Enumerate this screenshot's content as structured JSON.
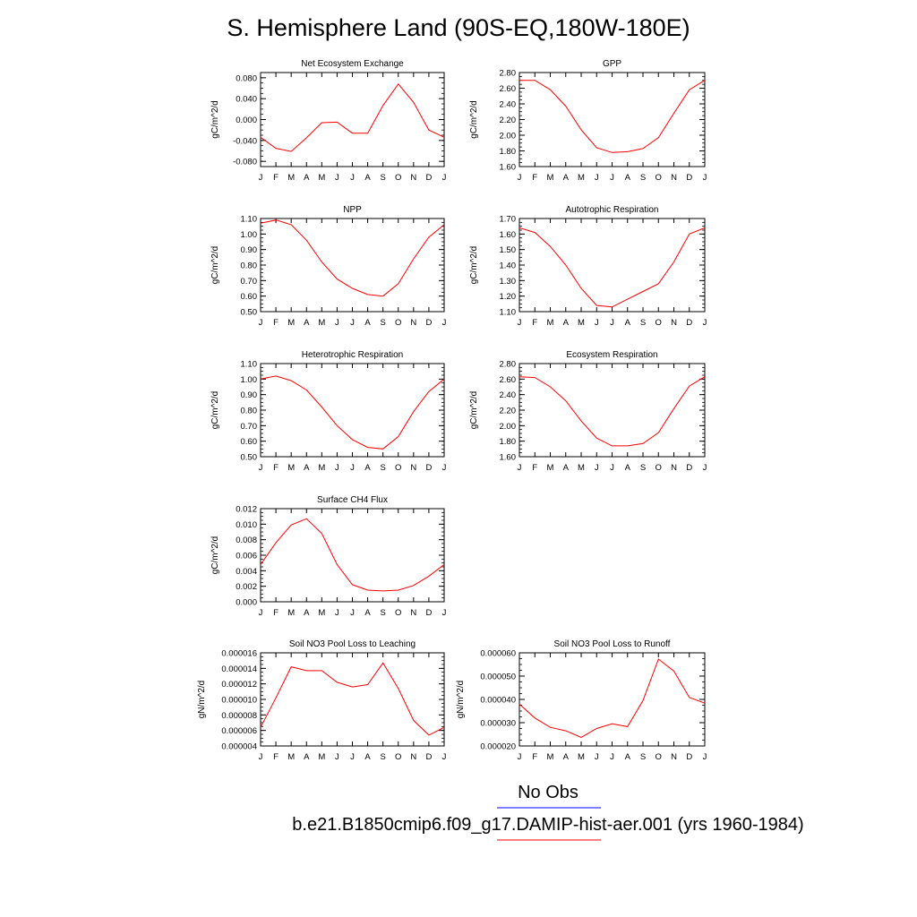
{
  "page_title": "S. Hemisphere Land (90S-EQ,180W-180E)",
  "months": [
    "J",
    "F",
    "M",
    "A",
    "M",
    "J",
    "J",
    "A",
    "S",
    "O",
    "N",
    "D",
    "J"
  ],
  "colors": {
    "model": "#ff0000",
    "obs": "#0000ff"
  },
  "legend": {
    "obs_label": "No Obs",
    "model_label": "b.e21.B1850cmip6.f09_g17.DAMIP-hist-aer.001 (yrs 1960-1984)"
  },
  "chart_data": [
    {
      "type": "line",
      "title": "Net Ecosystem Exchange",
      "ylabel": "gC/m^2/d",
      "ylim": [
        -0.09,
        0.09
      ],
      "yticks": [
        -0.08,
        -0.04,
        0.0,
        0.04,
        0.08
      ],
      "yticklabels": [
        "-0.080",
        "-0.040",
        "0.000",
        "0.040",
        "0.080"
      ],
      "values": [
        -0.034,
        -0.055,
        -0.061,
        -0.035,
        -0.006,
        -0.005,
        -0.026,
        -0.026,
        0.027,
        0.068,
        0.033,
        -0.02,
        -0.034
      ]
    },
    {
      "type": "line",
      "title": "GPP",
      "ylabel": "gC/m^2/d",
      "ylim": [
        1.6,
        2.8
      ],
      "yticks": [
        1.6,
        1.8,
        2.0,
        2.2,
        2.4,
        2.6,
        2.8
      ],
      "yticklabels": [
        "1.60",
        "1.80",
        "2.00",
        "2.20",
        "2.40",
        "2.60",
        "2.80"
      ],
      "values": [
        2.7,
        2.7,
        2.58,
        2.37,
        2.07,
        1.84,
        1.78,
        1.79,
        1.83,
        1.97,
        2.28,
        2.58,
        2.7
      ]
    },
    {
      "type": "line",
      "title": "NPP",
      "ylabel": "gC/m^2/d",
      "ylim": [
        0.5,
        1.1
      ],
      "yticks": [
        0.5,
        0.6,
        0.7,
        0.8,
        0.9,
        1.0,
        1.1
      ],
      "yticklabels": [
        "0.50",
        "0.60",
        "0.70",
        "0.80",
        "0.90",
        "1.00",
        "1.10"
      ],
      "values": [
        1.07,
        1.09,
        1.06,
        0.96,
        0.82,
        0.71,
        0.65,
        0.61,
        0.6,
        0.68,
        0.84,
        0.98,
        1.06
      ]
    },
    {
      "type": "line",
      "title": "Autotrophic Respiration",
      "ylabel": "gC/m^2/d",
      "ylim": [
        1.1,
        1.7
      ],
      "yticks": [
        1.1,
        1.2,
        1.3,
        1.4,
        1.5,
        1.6,
        1.7
      ],
      "yticklabels": [
        "1.10",
        "1.20",
        "1.30",
        "1.40",
        "1.50",
        "1.60",
        "1.70"
      ],
      "values": [
        1.64,
        1.61,
        1.52,
        1.4,
        1.25,
        1.14,
        1.13,
        1.18,
        1.23,
        1.28,
        1.42,
        1.6,
        1.64
      ]
    },
    {
      "type": "line",
      "title": "Heterotrophic Respiration",
      "ylabel": "gC/m^2/d",
      "ylim": [
        0.5,
        1.1
      ],
      "yticks": [
        0.5,
        0.6,
        0.7,
        0.8,
        0.9,
        1.0,
        1.1
      ],
      "yticklabels": [
        "0.50",
        "0.60",
        "0.70",
        "0.80",
        "0.90",
        "1.00",
        "1.10"
      ],
      "values": [
        1.0,
        1.02,
        0.99,
        0.93,
        0.82,
        0.7,
        0.61,
        0.56,
        0.55,
        0.63,
        0.79,
        0.92,
        1.0
      ]
    },
    {
      "type": "line",
      "title": "Ecosystem Respiration",
      "ylabel": "gC/m^2/d",
      "ylim": [
        1.6,
        2.8
      ],
      "yticks": [
        1.6,
        1.8,
        2.0,
        2.2,
        2.4,
        2.6,
        2.8
      ],
      "yticklabels": [
        "1.60",
        "1.80",
        "2.00",
        "2.20",
        "2.40",
        "2.60",
        "2.80"
      ],
      "values": [
        2.63,
        2.62,
        2.5,
        2.32,
        2.06,
        1.84,
        1.74,
        1.74,
        1.77,
        1.91,
        2.22,
        2.51,
        2.63
      ]
    },
    {
      "type": "line",
      "title": "Surface CH4 Flux",
      "ylabel": "gC/m^2/d",
      "ylim": [
        0.0,
        0.012
      ],
      "yticks": [
        0.0,
        0.002,
        0.004,
        0.006,
        0.008,
        0.01,
        0.012
      ],
      "yticklabels": [
        "0.000",
        "0.002",
        "0.004",
        "0.006",
        "0.008",
        "0.010",
        "0.012"
      ],
      "values": [
        0.0048,
        0.0076,
        0.0099,
        0.0107,
        0.0088,
        0.0048,
        0.0022,
        0.0015,
        0.0014,
        0.0015,
        0.0021,
        0.0033,
        0.0048
      ]
    },
    {
      "type": "line",
      "title": "Soil NO3 Pool Loss to Leaching",
      "ylabel": "gN/m^2/d",
      "ylim": [
        4e-06,
        1.6e-05
      ],
      "yticks": [
        4e-06,
        6e-06,
        8e-06,
        1e-05,
        1.2e-05,
        1.4e-05,
        1.6e-05
      ],
      "yticklabels": [
        "0.000004",
        "0.000006",
        "0.000008",
        "0.000010",
        "0.000012",
        "0.000014",
        "0.000016"
      ],
      "values": [
        6.4e-06,
        1.02e-05,
        1.42e-05,
        1.37e-05,
        1.37e-05,
        1.22e-05,
        1.16e-05,
        1.19e-05,
        1.47e-05,
        1.14e-05,
        7.3e-06,
        5.4e-06,
        6.4e-06
      ]
    },
    {
      "type": "line",
      "title": "Soil NO3 Pool Loss to Runoff",
      "ylabel": "gN/m^2/d",
      "ylim": [
        2e-05,
        6e-05
      ],
      "yticks": [
        2e-05,
        3e-05,
        4e-05,
        5e-05,
        6e-05
      ],
      "yticklabels": [
        "0.000020",
        "0.000030",
        "0.000040",
        "0.000050",
        "0.000060"
      ],
      "values": [
        3.8e-05,
        3.2e-05,
        2.8e-05,
        2.65e-05,
        2.37e-05,
        2.75e-05,
        2.95e-05,
        2.83e-05,
        3.95e-05,
        5.73e-05,
        5.22e-05,
        4.08e-05,
        3.84e-05
      ]
    }
  ]
}
